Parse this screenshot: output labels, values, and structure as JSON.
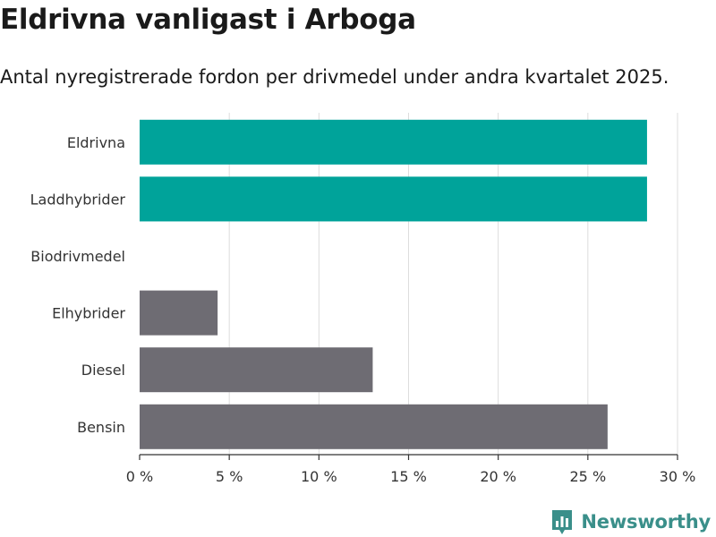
{
  "header": {
    "title": "Eldrivna vanligast i Arboga",
    "subtitle": "Antal nyregistrerade fordon per drivmedel under andra kvartalet 2025."
  },
  "brand": {
    "name": "Newsworthy",
    "icon": "newsworthy-logo-icon",
    "color": "#3a8f8a"
  },
  "colors": {
    "highlight": "#00a39a",
    "default": "#6e6c73",
    "grid": "#dddddd"
  },
  "chart_data": {
    "type": "bar",
    "orientation": "horizontal",
    "categories": [
      "Eldrivna",
      "Laddhybrider",
      "Biodrivmedel",
      "Elhybrider",
      "Diesel",
      "Bensin"
    ],
    "values": [
      28.3,
      28.3,
      0,
      4.35,
      13.0,
      26.1
    ],
    "highlighted": [
      true,
      true,
      false,
      false,
      false,
      false
    ],
    "xlim": [
      0,
      30
    ],
    "xticks": [
      0,
      5,
      10,
      15,
      20,
      25,
      30
    ],
    "xtick_labels": [
      "0 %",
      "5 %",
      "10 %",
      "15 %",
      "20 %",
      "25 %",
      "30 %"
    ],
    "grid": true
  }
}
